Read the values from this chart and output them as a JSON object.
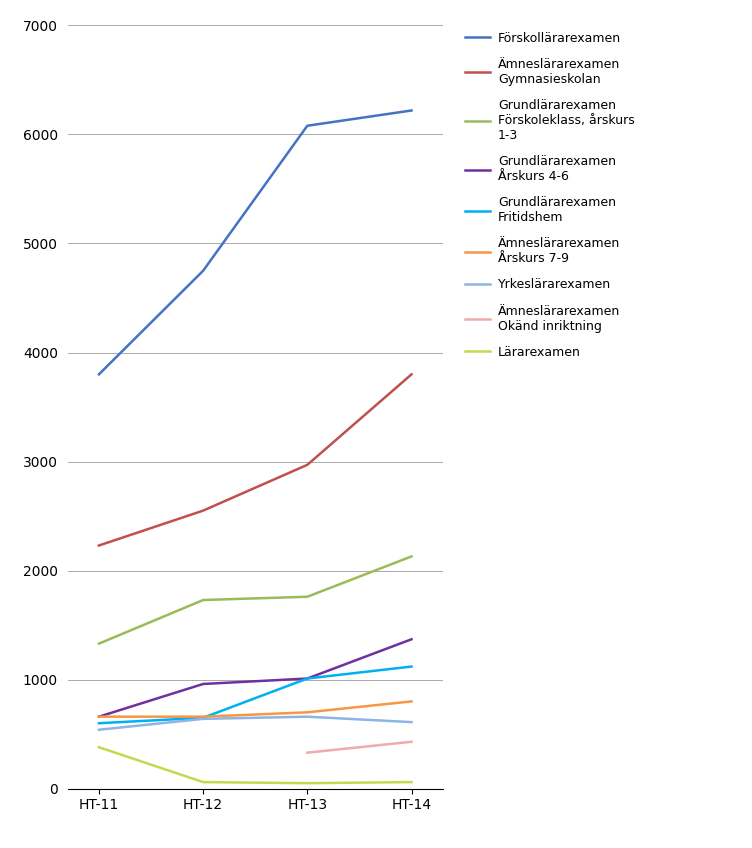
{
  "x_labels": [
    "HT-11",
    "HT-12",
    "HT-13",
    "HT-14"
  ],
  "series": [
    {
      "label": "Förskollärarexamen",
      "color": "#4472C4",
      "values": [
        3800,
        4750,
        6080,
        6220
      ]
    },
    {
      "label": "Ämneslärarexamen\nGymnasieskolan",
      "color": "#C0504D",
      "values": [
        2230,
        2550,
        2970,
        3800
      ]
    },
    {
      "label": "Grundlärarexamen\nFörskoleklass, årskurs\n1-3",
      "color": "#9BBB59",
      "values": [
        1330,
        1730,
        1760,
        2130
      ]
    },
    {
      "label": "Grundlärarexamen\nÅrskurs 4-6",
      "color": "#7030A0",
      "values": [
        660,
        960,
        1010,
        1370
      ]
    },
    {
      "label": "Grundlärarexamen\nFritidshem",
      "color": "#00B0F0",
      "values": [
        600,
        650,
        1010,
        1120
      ]
    },
    {
      "label": "Ämneslärarexamen\nÅrskurs 7-9",
      "color": "#F79646",
      "values": [
        660,
        660,
        700,
        800
      ]
    },
    {
      "label": "Yrkeslärarexamen",
      "color": "#8EB4E3",
      "values": [
        540,
        640,
        660,
        610
      ]
    },
    {
      "label": "Ämneslärarexamen\nOkänd inriktning",
      "color": "#F2ABAB",
      "values": [
        null,
        null,
        330,
        430
      ]
    },
    {
      "label": "Lärarexamen",
      "color": "#C6D94E",
      "values": [
        380,
        60,
        50,
        60
      ]
    }
  ],
  "ylim": [
    0,
    7000
  ],
  "yticks": [
    0,
    1000,
    2000,
    3000,
    4000,
    5000,
    6000,
    7000
  ],
  "background_color": "#FFFFFF",
  "grid_color": "#AAAAAA",
  "legend_fontsize": 9,
  "axis_fontsize": 10,
  "figure_width": 7.52,
  "figure_height": 8.48
}
